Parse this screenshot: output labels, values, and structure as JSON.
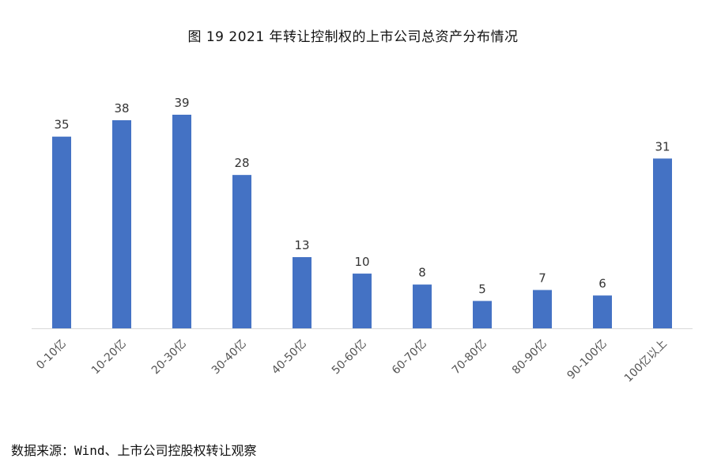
{
  "title": "图 19 2021 年转让控制权的上市公司总资产分布情况",
  "source": "数据来源：Wind、上市公司控股权转让观察",
  "chart_data": {
    "type": "bar",
    "categories": [
      "0-10亿",
      "10-20亿",
      "20-30亿",
      "30-40亿",
      "40-50亿",
      "50-60亿",
      "60-70亿",
      "70-80亿",
      "80-90亿",
      "90-100亿",
      "100亿以上"
    ],
    "values": [
      35,
      38,
      39,
      28,
      13,
      10,
      8,
      5,
      7,
      6,
      31
    ],
    "ylim": [
      0,
      39
    ],
    "grid": false,
    "bar_color": "#4472C4"
  }
}
